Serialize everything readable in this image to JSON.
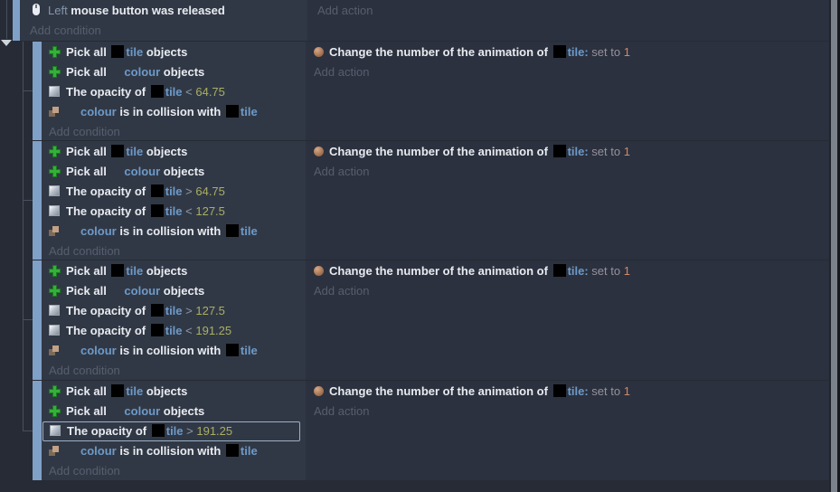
{
  "colors": {
    "canvas_bg": "#262b35",
    "event_bg": "#2b313e",
    "conditions_bg": "#313845",
    "handle_bar": "#7fa0c7",
    "object_name": "#6d9ac9",
    "number_param": "#a9af63",
    "value_param": "#cf8a6a",
    "muted_text": "#575e6e",
    "selection_border": "#9db0c6",
    "pick_icon_green": "#35b03a"
  },
  "labels": {
    "add_condition": "Add condition",
    "add_action": "Add action"
  },
  "top_event": {
    "condition": {
      "icon": "mouse",
      "segs": [
        [
          "param",
          "Left"
        ],
        [
          "t",
          " mouse button was released"
        ]
      ]
    },
    "add_condition": "Add condition",
    "add_action": "Add action"
  },
  "blocks": [
    {
      "conditions": [
        {
          "icon": "pick",
          "segs": [
            [
              "t",
              "Pick all "
            ],
            [
              "thumb"
            ],
            [
              "obj",
              "tile"
            ],
            [
              "t",
              " objects"
            ]
          ]
        },
        {
          "icon": "pick",
          "segs": [
            [
              "t",
              "Pick all "
            ],
            [
              "ghost"
            ],
            [
              "obj",
              "colour"
            ],
            [
              "t",
              " objects"
            ]
          ]
        },
        {
          "icon": "opacity",
          "segs": [
            [
              "t",
              "The opacity of "
            ],
            [
              "thumb"
            ],
            [
              "obj",
              "tile"
            ],
            [
              "op",
              " < "
            ],
            [
              "num",
              "64.75"
            ]
          ]
        },
        {
          "icon": "collision",
          "segs": [
            [
              "ghost"
            ],
            [
              "obj",
              "colour"
            ],
            [
              "t",
              " is in collision with "
            ],
            [
              "thumb"
            ],
            [
              "obj",
              "tile"
            ]
          ]
        }
      ],
      "selected_condition": -1,
      "action": {
        "icon": "anim",
        "segs": [
          [
            "t",
            "Change the number of the animation of "
          ],
          [
            "thumb"
          ],
          [
            "obj",
            "tile:"
          ],
          [
            "setto",
            " set to "
          ],
          [
            "val",
            "1"
          ]
        ]
      }
    },
    {
      "conditions": [
        {
          "icon": "pick",
          "segs": [
            [
              "t",
              "Pick all "
            ],
            [
              "thumb"
            ],
            [
              "obj",
              "tile"
            ],
            [
              "t",
              " objects"
            ]
          ]
        },
        {
          "icon": "pick",
          "segs": [
            [
              "t",
              "Pick all "
            ],
            [
              "ghost"
            ],
            [
              "obj",
              "colour"
            ],
            [
              "t",
              " objects"
            ]
          ]
        },
        {
          "icon": "opacity",
          "segs": [
            [
              "t",
              "The opacity of "
            ],
            [
              "thumb"
            ],
            [
              "obj",
              "tile"
            ],
            [
              "op",
              " > "
            ],
            [
              "num",
              "64.75"
            ]
          ]
        },
        {
          "icon": "opacity",
          "segs": [
            [
              "t",
              "The opacity of "
            ],
            [
              "thumb"
            ],
            [
              "obj",
              "tile"
            ],
            [
              "op",
              " < "
            ],
            [
              "num",
              "127.5"
            ]
          ]
        },
        {
          "icon": "collision",
          "segs": [
            [
              "ghost"
            ],
            [
              "obj",
              "colour"
            ],
            [
              "t",
              " is in collision with "
            ],
            [
              "thumb"
            ],
            [
              "obj",
              "tile"
            ]
          ]
        }
      ],
      "selected_condition": -1,
      "action": {
        "icon": "anim",
        "segs": [
          [
            "t",
            "Change the number of the animation of "
          ],
          [
            "thumb"
          ],
          [
            "obj",
            "tile:"
          ],
          [
            "setto",
            " set to "
          ],
          [
            "val",
            "1"
          ]
        ]
      }
    },
    {
      "conditions": [
        {
          "icon": "pick",
          "segs": [
            [
              "t",
              "Pick all "
            ],
            [
              "thumb"
            ],
            [
              "obj",
              "tile"
            ],
            [
              "t",
              " objects"
            ]
          ]
        },
        {
          "icon": "pick",
          "segs": [
            [
              "t",
              "Pick all "
            ],
            [
              "ghost"
            ],
            [
              "obj",
              "colour"
            ],
            [
              "t",
              " objects"
            ]
          ]
        },
        {
          "icon": "opacity",
          "segs": [
            [
              "t",
              "The opacity of "
            ],
            [
              "thumb"
            ],
            [
              "obj",
              "tile"
            ],
            [
              "op",
              " > "
            ],
            [
              "num",
              "127.5"
            ]
          ]
        },
        {
          "icon": "opacity",
          "segs": [
            [
              "t",
              "The opacity of "
            ],
            [
              "thumb"
            ],
            [
              "obj",
              "tile"
            ],
            [
              "op",
              " < "
            ],
            [
              "num",
              "191.25"
            ]
          ]
        },
        {
          "icon": "collision",
          "segs": [
            [
              "ghost"
            ],
            [
              "obj",
              "colour"
            ],
            [
              "t",
              " is in collision with "
            ],
            [
              "thumb"
            ],
            [
              "obj",
              "tile"
            ]
          ]
        }
      ],
      "selected_condition": -1,
      "action": {
        "icon": "anim",
        "segs": [
          [
            "t",
            "Change the number of the animation of "
          ],
          [
            "thumb"
          ],
          [
            "obj",
            "tile:"
          ],
          [
            "setto",
            " set to "
          ],
          [
            "val",
            "1"
          ]
        ]
      }
    },
    {
      "conditions": [
        {
          "icon": "pick",
          "segs": [
            [
              "t",
              "Pick all "
            ],
            [
              "thumb"
            ],
            [
              "obj",
              "tile"
            ],
            [
              "t",
              " objects"
            ]
          ]
        },
        {
          "icon": "pick",
          "segs": [
            [
              "t",
              "Pick all "
            ],
            [
              "ghost"
            ],
            [
              "obj",
              "colour"
            ],
            [
              "t",
              " objects"
            ]
          ]
        },
        {
          "icon": "opacity",
          "segs": [
            [
              "t",
              "The opacity of "
            ],
            [
              "thumb"
            ],
            [
              "obj",
              "tile"
            ],
            [
              "op",
              " > "
            ],
            [
              "num",
              "191.25"
            ]
          ]
        },
        {
          "icon": "collision",
          "segs": [
            [
              "ghost"
            ],
            [
              "obj",
              "colour"
            ],
            [
              "t",
              " is in collision with "
            ],
            [
              "thumb"
            ],
            [
              "obj",
              "tile"
            ]
          ]
        }
      ],
      "selected_condition": 2,
      "action": {
        "icon": "anim",
        "segs": [
          [
            "t",
            "Change the number of the animation of "
          ],
          [
            "thumb"
          ],
          [
            "obj",
            "tile:"
          ],
          [
            "setto",
            " set to "
          ],
          [
            "val",
            "1"
          ]
        ]
      }
    }
  ],
  "geometry": {
    "block_tops": [
      46,
      156,
      288,
      421
    ],
    "block_heights": [
      109,
      131,
      132,
      110
    ]
  }
}
